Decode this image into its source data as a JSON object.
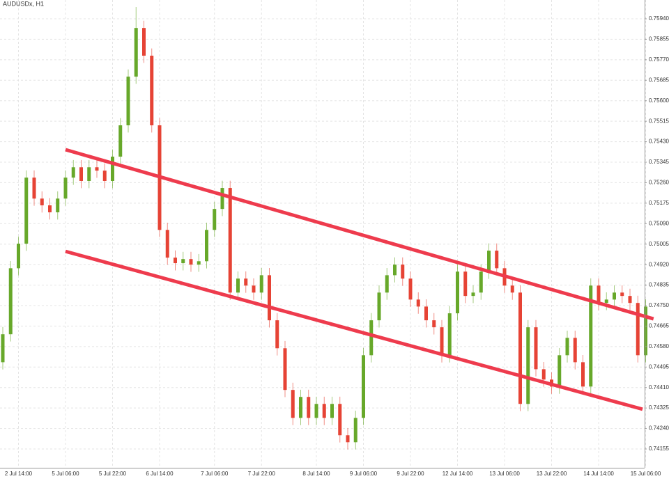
{
  "chart_data": {
    "type": "candlestick",
    "title": "AUDUSDx, H1",
    "categories": [
      null,
      null,
      "2 Jul 14:00",
      null,
      null,
      null,
      null,
      null,
      "5 Jul 06:00",
      null,
      null,
      null,
      null,
      null,
      "5 Jul 22:00",
      null,
      null,
      null,
      null,
      null,
      "6 Jul 14:00",
      null,
      null,
      null,
      null,
      null,
      null,
      "7 Jul 06:00",
      null,
      null,
      null,
      null,
      null,
      "7 Jul 22:00",
      null,
      null,
      null,
      null,
      null,
      null,
      "8 Jul 14:00",
      null,
      null,
      null,
      null,
      null,
      "9 Jul 06:00",
      null,
      null,
      null,
      null,
      null,
      "9 Jul 22:00",
      null,
      null,
      null,
      null,
      null,
      "12 Jul 14:00",
      null,
      null,
      null,
      null,
      null,
      "13 Jul 06:00",
      null,
      null,
      null,
      null,
      null,
      "13 Jul 22:00",
      null,
      null,
      null,
      null,
      null,
      "14 Jul 14:00",
      null,
      null,
      null,
      null,
      null,
      "15 Jul 06:00"
    ],
    "open": [
      0.74515,
      0.74631,
      0.74905,
      0.75007,
      0.75281,
      0.75194,
      0.75166,
      0.75137,
      0.75194,
      0.75281,
      0.75324,
      0.75267,
      0.75324,
      0.7531,
      0.75267,
      0.75368,
      0.75498,
      0.757,
      0.75902,
      0.75787,
      0.75498,
      0.75064,
      0.74949,
      0.74926,
      0.74943,
      0.7492,
      0.74934,
      0.75064,
      0.75151,
      0.75238,
      0.74804,
      0.74862,
      0.74833,
      0.74804,
      0.74876,
      0.74689,
      0.74573,
      0.744,
      0.74284,
      0.74371,
      0.74284,
      0.74342,
      0.74284,
      0.74342,
      0.74212,
      0.74183,
      0.74284,
      0.74544,
      0.74689,
      0.74804,
      0.74876,
      0.7492,
      0.74862,
      0.74775,
      0.74746,
      0.74689,
      0.7466,
      0.74544,
      0.74718,
      0.74891,
      0.7479,
      0.74804,
      0.74891,
      0.74978,
      0.74905,
      0.74833,
      0.74804,
      0.74342,
      0.7466,
      0.74486,
      0.74443,
      0.74414,
      0.74544,
      0.74616,
      0.74515,
      0.74414,
      0.74833,
      0.74761,
      0.74775,
      0.74804,
      0.7479,
      0.74761,
      0.74544
    ],
    "high": [
      0.74661,
      0.74935,
      0.75037,
      0.75311,
      0.75311,
      0.75224,
      0.75196,
      0.75224,
      0.75311,
      0.75354,
      0.75354,
      0.75354,
      0.75354,
      0.7534,
      0.75398,
      0.75528,
      0.7573,
      0.75989,
      0.75932,
      0.75817,
      0.75528,
      0.75094,
      0.74979,
      0.74973,
      0.74973,
      0.74964,
      0.75094,
      0.75181,
      0.75268,
      0.75268,
      0.74892,
      0.74892,
      0.74863,
      0.74906,
      0.74906,
      0.74719,
      0.74603,
      0.7443,
      0.74401,
      0.74401,
      0.74372,
      0.74372,
      0.74372,
      0.74372,
      0.74242,
      0.74314,
      0.74574,
      0.74719,
      0.74834,
      0.74906,
      0.7495,
      0.7495,
      0.74892,
      0.74805,
      0.74776,
      0.74719,
      0.7469,
      0.74748,
      0.74921,
      0.74921,
      0.74834,
      0.74921,
      0.75008,
      0.75008,
      0.74935,
      0.74863,
      0.74834,
      0.7469,
      0.7469,
      0.74516,
      0.74473,
      0.74574,
      0.74646,
      0.74646,
      0.74545,
      0.74863,
      0.74863,
      0.74805,
      0.74834,
      0.74834,
      0.7482,
      0.74791,
      0.74776
    ],
    "low": [
      0.74485,
      0.74601,
      0.74875,
      0.74977,
      0.75164,
      0.75136,
      0.75107,
      0.75107,
      0.75164,
      0.75251,
      0.75237,
      0.75237,
      0.7528,
      0.75237,
      0.75237,
      0.75338,
      0.75468,
      0.7567,
      0.75757,
      0.75468,
      0.75034,
      0.74919,
      0.74896,
      0.74896,
      0.7489,
      0.7489,
      0.74904,
      0.75034,
      0.75121,
      0.74774,
      0.74774,
      0.74803,
      0.74774,
      0.74774,
      0.74659,
      0.74543,
      0.7437,
      0.74254,
      0.74254,
      0.74254,
      0.74254,
      0.74254,
      0.74254,
      0.74182,
      0.74153,
      0.74153,
      0.74254,
      0.74514,
      0.74659,
      0.74774,
      0.74846,
      0.74832,
      0.74745,
      0.74716,
      0.74659,
      0.7463,
      0.74514,
      0.74514,
      0.74688,
      0.7476,
      0.7476,
      0.74774,
      0.74861,
      0.74875,
      0.74803,
      0.74774,
      0.74312,
      0.74312,
      0.74456,
      0.74413,
      0.74384,
      0.74384,
      0.74514,
      0.74485,
      0.74384,
      0.74384,
      0.74731,
      0.74731,
      0.74745,
      0.7476,
      0.74731,
      0.74514,
      0.74514
    ],
    "close": [
      0.74631,
      0.74905,
      0.75007,
      0.75281,
      0.75194,
      0.75166,
      0.75137,
      0.75194,
      0.75281,
      0.75324,
      0.75267,
      0.75324,
      0.7531,
      0.75267,
      0.75368,
      0.75498,
      0.757,
      0.75902,
      0.75787,
      0.75498,
      0.75064,
      0.74949,
      0.74926,
      0.74943,
      0.7492,
      0.74934,
      0.75064,
      0.75151,
      0.75238,
      0.74804,
      0.74862,
      0.74833,
      0.74804,
      0.74876,
      0.74689,
      0.74573,
      0.744,
      0.74284,
      0.74371,
      0.74284,
      0.74342,
      0.74284,
      0.74342,
      0.74212,
      0.74183,
      0.74284,
      0.74544,
      0.74689,
      0.74804,
      0.74876,
      0.7492,
      0.74862,
      0.74775,
      0.74746,
      0.74689,
      0.7466,
      0.74544,
      0.74718,
      0.74891,
      0.7479,
      0.74804,
      0.74891,
      0.74978,
      0.74905,
      0.74833,
      0.74804,
      0.74342,
      0.7466,
      0.74486,
      0.74443,
      0.74414,
      0.74544,
      0.74616,
      0.74515,
      0.74414,
      0.74833,
      0.74761,
      0.74775,
      0.74804,
      0.7479,
      0.74761,
      0.74544,
      0.74746
    ],
    "up_color": "#67a82a",
    "down_color": "#e64335",
    "ylim": [
      0.74077,
      0.76018
    ],
    "yticks": [
      {
        "value": 0.7594,
        "label": "0.75940"
      },
      0.75855,
      {
        "value": 0.7577,
        "label": "0.75770"
      },
      0.75685,
      {
        "value": 0.756,
        "label": "0.75600"
      },
      0.75515,
      {
        "value": 0.7543,
        "label": "0.75430"
      },
      0.75345,
      {
        "value": 0.7526,
        "label": "0.75260"
      },
      0.75175,
      {
        "value": 0.7509,
        "label": "0.75090"
      },
      0.75005,
      {
        "value": 0.7492,
        "label": "0.74920"
      },
      0.74835,
      {
        "value": 0.7475,
        "label": "0.74750"
      },
      0.74665,
      {
        "value": 0.7458,
        "label": "0.74580"
      },
      0.74495,
      {
        "value": 0.7441,
        "label": "0.74410"
      },
      0.74325,
      {
        "value": 0.7424,
        "label": "0.74240"
      },
      0.74155
    ],
    "grid": true,
    "channel_lines": [
      {
        "color": "#ee3b4d",
        "x": [
          8,
          83
        ],
        "y": [
          0.75397,
          0.74695
        ]
      },
      {
        "color": "#ee3b4d",
        "x": [
          8,
          81.6
        ],
        "y": [
          0.74975,
          0.7432
        ]
      }
    ]
  }
}
